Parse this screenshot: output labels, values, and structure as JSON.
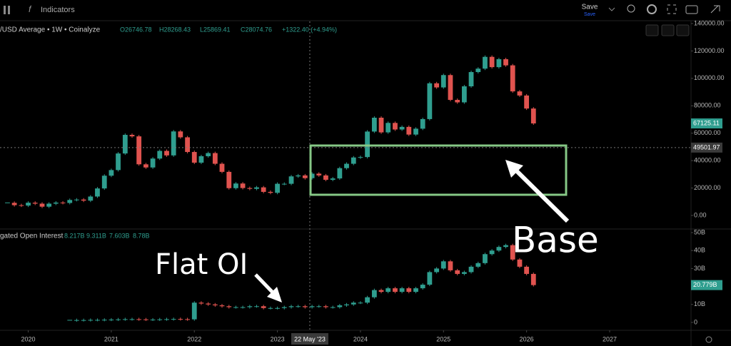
{
  "toolbar": {
    "indicators": "Indicators",
    "save": "Save",
    "save_sub": "Save"
  },
  "annotations": {
    "flat": "Flat OI",
    "base": "Base"
  },
  "chart_data": [
    {
      "type": "candlestick",
      "title": "/USD Average • 1W • Coinalyze",
      "legend_values": [
        "O26746.78",
        "H28268.43",
        "L25869.41",
        "C28074.76",
        "+1322.40 (+4.94%)"
      ],
      "x": [
        2019.75,
        2019.833,
        2019.917,
        2020.0,
        2020.083,
        2020.167,
        2020.25,
        2020.333,
        2020.417,
        2020.5,
        2020.583,
        2020.667,
        2020.75,
        2020.833,
        2020.917,
        2021.0,
        2021.083,
        2021.167,
        2021.25,
        2021.333,
        2021.417,
        2021.5,
        2021.583,
        2021.667,
        2021.75,
        2021.833,
        2021.917,
        2022.0,
        2022.083,
        2022.167,
        2022.25,
        2022.333,
        2022.417,
        2022.5,
        2022.583,
        2022.667,
        2022.75,
        2022.833,
        2022.917,
        2023.0,
        2023.083,
        2023.167,
        2023.25,
        2023.333,
        2023.417,
        2023.5,
        2023.583,
        2023.667,
        2023.75,
        2023.833,
        2023.917,
        2024.0,
        2024.083,
        2024.167,
        2024.25,
        2024.333,
        2024.417,
        2024.5,
        2024.583,
        2024.667,
        2024.75,
        2024.833,
        2024.917,
        2025.0,
        2025.083,
        2025.167,
        2025.25,
        2025.333,
        2025.417,
        2025.5,
        2025.583,
        2025.667,
        2025.75,
        2025.833,
        2025.917,
        2026.0,
        2026.083
      ],
      "values": [
        9200,
        7500,
        7200,
        9300,
        8600,
        6400,
        8600,
        9400,
        9100,
        11300,
        11600,
        10800,
        13800,
        19700,
        29000,
        33100,
        45200,
        58800,
        57700,
        37300,
        35000,
        41500,
        47100,
        43800,
        61300,
        57000,
        46300,
        38500,
        43200,
        45500,
        37700,
        31800,
        19900,
        23300,
        20000,
        19400,
        20500,
        17200,
        16500,
        23100,
        23100,
        28500,
        29200,
        27200,
        30500,
        29200,
        26000,
        27000,
        34500,
        37700,
        42300,
        42600,
        61200,
        71300,
        60600,
        67500,
        62700,
        64600,
        59000,
        63300,
        70300,
        96400,
        93400,
        102400,
        84300,
        82500,
        94200,
        104600,
        107100,
        115700,
        108200,
        114000,
        109500,
        90500,
        87500,
        78000,
        67125.11
      ],
      "up_color": "#2f9e8f",
      "down_color": "#e0534f",
      "xlim": [
        2019.66,
        2027.98
      ],
      "ylim": [
        -9370,
        141560
      ],
      "yticks": [
        {
          "value": 0,
          "label": "0.00"
        },
        {
          "value": 20000,
          "label": "20000.00"
        },
        {
          "value": 40000,
          "label": "40000.00"
        },
        {
          "value": 60000,
          "label": "60000.00"
        },
        {
          "value": 80000,
          "label": "80000.00"
        },
        {
          "value": 100000,
          "label": "100000.00"
        },
        {
          "value": 120000,
          "label": "120000.00"
        },
        {
          "value": 140000,
          "label": "140000.00"
        }
      ],
      "tags": [
        {
          "value": 67125.11,
          "label": "67125.11"
        }
      ],
      "tag_color": "#2f9e8f",
      "crosshair": {
        "x": {
          "value": 2023.39,
          "label": "22 May '23"
        },
        "y": {
          "value": 49501.97,
          "label": "49501.97"
        }
      }
    },
    {
      "type": "candlestick",
      "title": "gated Open Interest",
      "legend_values": [
        "8.217B",
        "9.311B",
        "7.603B",
        "8.78B"
      ],
      "x": [
        2019.75,
        2019.833,
        2019.917,
        2020.0,
        2020.083,
        2020.167,
        2020.25,
        2020.333,
        2020.417,
        2020.5,
        2020.583,
        2020.667,
        2020.75,
        2020.833,
        2020.917,
        2021.0,
        2021.083,
        2021.167,
        2021.25,
        2021.333,
        2021.417,
        2021.5,
        2021.583,
        2021.667,
        2021.75,
        2021.833,
        2021.917,
        2022.0,
        2022.083,
        2022.167,
        2022.25,
        2022.333,
        2022.417,
        2022.5,
        2022.583,
        2022.667,
        2022.75,
        2022.833,
        2022.917,
        2023.0,
        2023.083,
        2023.167,
        2023.25,
        2023.333,
        2023.417,
        2023.5,
        2023.583,
        2023.667,
        2023.75,
        2023.833,
        2023.917,
        2024.0,
        2024.083,
        2024.167,
        2024.25,
        2024.333,
        2024.417,
        2024.5,
        2024.583,
        2024.667,
        2024.75,
        2024.833,
        2024.917,
        2025.0,
        2025.083,
        2025.167,
        2025.25,
        2025.333,
        2025.417,
        2025.5,
        2025.583,
        2025.667,
        2025.75,
        2025.833,
        2025.917,
        2026.0,
        2026.083
      ],
      "values": [
        null,
        null,
        null,
        null,
        null,
        null,
        null,
        null,
        null,
        1.2,
        1.3,
        1.3,
        1.4,
        1.4,
        1.5,
        1.6,
        1.7,
        1.8,
        1.8,
        1.7,
        1.6,
        1.6,
        1.7,
        1.8,
        1.9,
        1.8,
        1.7,
        11,
        10.5,
        10,
        9.5,
        9,
        8.5,
        8.5,
        8.5,
        9,
        9,
        8,
        8,
        8,
        8.5,
        9,
        9,
        8.5,
        9,
        9,
        8.5,
        8.5,
        9.5,
        10,
        11,
        11,
        14,
        18,
        17,
        19,
        17,
        19,
        17,
        19,
        21,
        28,
        30,
        34,
        29,
        27,
        28,
        31,
        33,
        38,
        40,
        42,
        43,
        35,
        31,
        27,
        20.779
      ],
      "up_color": "#2f9e8f",
      "down_color": "#e0534f",
      "xlim": [
        2019.66,
        2027.98
      ],
      "ylim": [
        -4,
        51.6
      ],
      "xticks": [
        2020,
        2021,
        2022,
        2023,
        2024,
        2025,
        2026,
        2027
      ],
      "yticks": [
        0,
        {
          "value": 10,
          "label": "10B"
        },
        {
          "value": 20,
          "label": "20B"
        },
        {
          "value": 30,
          "label": "30B"
        },
        {
          "value": 40,
          "label": "40B"
        },
        {
          "value": 50,
          "label": "50B"
        }
      ],
      "tags": [
        {
          "value": 20.779,
          "label": "20.779B"
        }
      ],
      "tag_color": "#2f9e8f"
    }
  ]
}
